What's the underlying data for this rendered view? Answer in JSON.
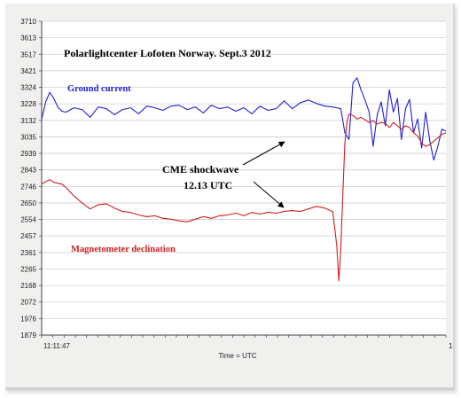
{
  "chart_data": {
    "type": "line",
    "title": "Polarlightcenter Lofoten Norway. Sept.3  2012",
    "xlabel": "Time = UTC",
    "x_start_label": "11:11:47",
    "x_end_label": "1",
    "ylim": [
      1879,
      3710
    ],
    "yticks": [
      "3710",
      "3613",
      "3517",
      "3421",
      "3324",
      "3228",
      "3132",
      "3035",
      "2939",
      "2843",
      "2746",
      "2650",
      "2554",
      "2457",
      "2361",
      "2265",
      "2168",
      "2072",
      "1976",
      "1879"
    ],
    "grid": true,
    "x_domain": [
      0,
      100
    ],
    "series": [
      {
        "name": "Ground current",
        "color": "#1f1fd6",
        "x": [
          0,
          1,
          2,
          3,
          4,
          5,
          6,
          8,
          10,
          12,
          14,
          16,
          18,
          20,
          22,
          24,
          26,
          28,
          30,
          32,
          34,
          36,
          38,
          40,
          42,
          44,
          46,
          48,
          50,
          52,
          54,
          56,
          58,
          60,
          62,
          64,
          66,
          68,
          70,
          72,
          74,
          75,
          76,
          77,
          78,
          79,
          80,
          81,
          82,
          83,
          84,
          85,
          86,
          87,
          88,
          89,
          90,
          91,
          92,
          93,
          94,
          95,
          96,
          97,
          98,
          99,
          100
        ],
        "y": [
          3140,
          3240,
          3295,
          3260,
          3210,
          3185,
          3180,
          3205,
          3195,
          3150,
          3210,
          3200,
          3165,
          3195,
          3205,
          3170,
          3215,
          3205,
          3190,
          3215,
          3220,
          3195,
          3210,
          3175,
          3220,
          3200,
          3210,
          3185,
          3205,
          3170,
          3215,
          3190,
          3200,
          3245,
          3200,
          3235,
          3250,
          3230,
          3215,
          3210,
          3200,
          3060,
          3020,
          3350,
          3380,
          3310,
          3250,
          3180,
          2980,
          3165,
          3240,
          3100,
          3310,
          3180,
          3260,
          3020,
          3200,
          3255,
          3060,
          3140,
          2970,
          3180,
          3010,
          2900,
          2980,
          3080,
          3070
        ]
      },
      {
        "name": "Magnetometer declination",
        "color": "#d01e1e",
        "x": [
          0,
          1,
          2,
          3,
          4,
          5,
          6,
          8,
          10,
          12,
          14,
          16,
          18,
          20,
          22,
          24,
          26,
          28,
          30,
          32,
          34,
          36,
          38,
          40,
          42,
          44,
          46,
          48,
          50,
          52,
          54,
          56,
          58,
          60,
          62,
          64,
          66,
          68,
          70,
          72,
          73,
          73.5,
          74,
          74.5,
          75,
          75.5,
          76,
          77,
          78,
          79,
          80,
          81,
          82,
          83,
          84,
          85,
          86,
          87,
          88,
          89,
          90,
          91,
          92,
          93,
          94,
          95,
          96,
          97,
          98,
          99,
          100
        ],
        "y": [
          2760,
          2775,
          2785,
          2770,
          2765,
          2760,
          2740,
          2690,
          2650,
          2615,
          2640,
          2645,
          2620,
          2600,
          2595,
          2580,
          2570,
          2575,
          2560,
          2555,
          2545,
          2540,
          2555,
          2570,
          2560,
          2575,
          2580,
          2590,
          2575,
          2595,
          2585,
          2595,
          2590,
          2600,
          2605,
          2600,
          2615,
          2630,
          2620,
          2600,
          2400,
          2195,
          2380,
          2700,
          3000,
          3120,
          3170,
          3160,
          3140,
          3150,
          3135,
          3120,
          3130,
          3110,
          3120,
          3115,
          3090,
          3120,
          3100,
          3080,
          3100,
          3090,
          3060,
          3040,
          3000,
          2980,
          2990,
          3010,
          3030,
          3050,
          3060
        ]
      }
    ],
    "annotations": [
      {
        "text": "CME shockwave",
        "sub": "12.13 UTC"
      }
    ]
  }
}
